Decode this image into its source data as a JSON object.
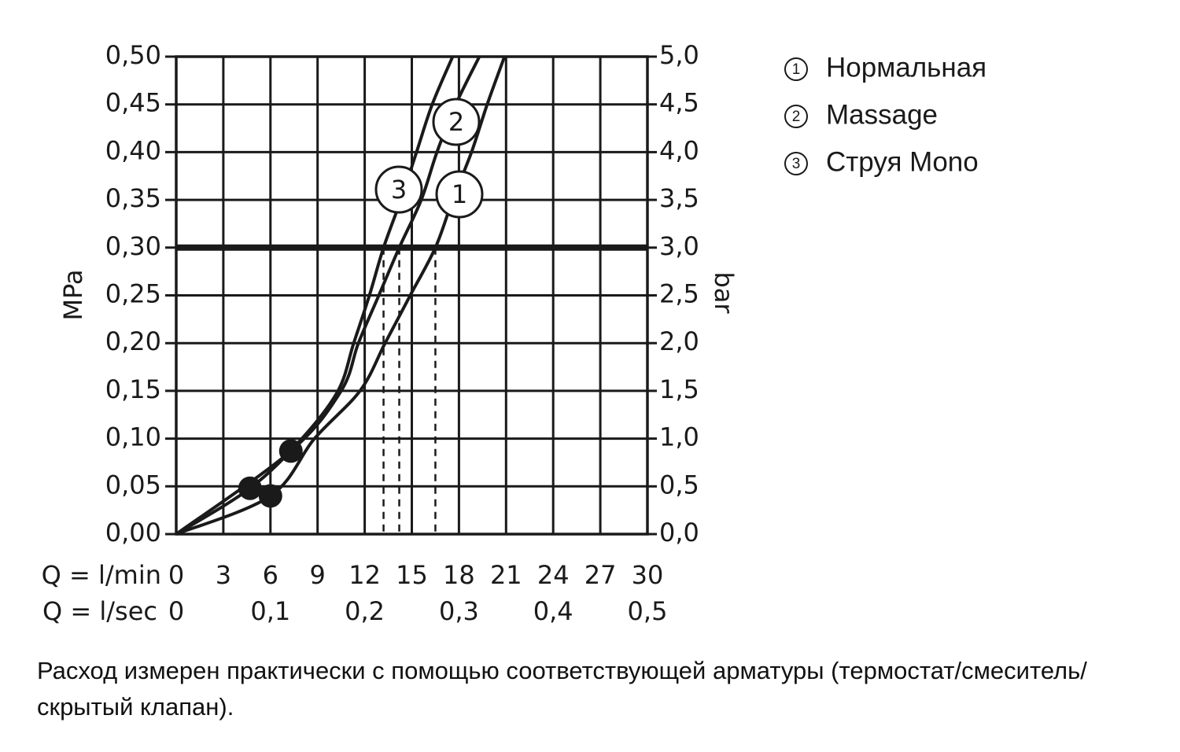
{
  "chart_data": {
    "type": "line",
    "y_label": "MPa",
    "y2_label": "bar",
    "x_label": "Q = l/min",
    "x2_label": "Q = l/sec",
    "xlim": [
      0,
      30
    ],
    "xticks": [
      0,
      3,
      6,
      9,
      12,
      15,
      18,
      21,
      24,
      27,
      30
    ],
    "x2lim": [
      0,
      0.5
    ],
    "x2ticks": [
      0,
      {
        "value": 0.1,
        "label": "0,1"
      },
      {
        "value": 0.2,
        "label": "0,2"
      },
      {
        "value": 0.3,
        "label": "0,3"
      },
      {
        "value": 0.4,
        "label": "0,4"
      },
      {
        "value": 0.5,
        "label": "0,5"
      }
    ],
    "ylim": [
      0,
      0.5
    ],
    "yticks": [
      {
        "value": 0,
        "label": "0,00"
      },
      {
        "value": 0.05,
        "label": "0,05"
      },
      {
        "value": 0.1,
        "label": "0,10"
      },
      {
        "value": 0.15,
        "label": "0,15"
      },
      {
        "value": 0.2,
        "label": "0,20"
      },
      {
        "value": 0.25,
        "label": "0,25"
      },
      {
        "value": 0.3,
        "label": "0,30"
      },
      {
        "value": 0.35,
        "label": "0,35"
      },
      {
        "value": 0.4,
        "label": "0,40"
      },
      {
        "value": 0.45,
        "label": "0,45"
      },
      {
        "value": 0.5,
        "label": "0,50"
      }
    ],
    "y2lim": [
      0,
      5
    ],
    "y2ticks": [
      {
        "value": 0,
        "label": "0,0"
      },
      {
        "value": 0.5,
        "label": "0,5"
      },
      {
        "value": 1,
        "label": "1,0"
      },
      {
        "value": 1.5,
        "label": "1,5"
      },
      {
        "value": 2,
        "label": "2,0"
      },
      {
        "value": 2.5,
        "label": "2,5"
      },
      {
        "value": 3,
        "label": "3,0"
      },
      {
        "value": 3.5,
        "label": "3,5"
      },
      {
        "value": 4,
        "label": "4,0"
      },
      {
        "value": 4.5,
        "label": "4,5"
      },
      {
        "value": 5,
        "label": "5,0"
      }
    ],
    "grid": true,
    "color": "#1a1a1a",
    "operating_pressure": 0.3,
    "series": [
      {
        "label": "1",
        "name": "Нормальная",
        "x": [
          0,
          6,
          8.8,
          11.7,
          13.3,
          14.9,
          16.5,
          17.6,
          18.8,
          19.8,
          20.9
        ],
        "values": [
          0,
          0.04,
          0.1,
          0.15,
          0.2,
          0.25,
          0.3,
          0.35,
          0.4,
          0.45,
          0.5
        ],
        "marker_x": 6,
        "marker_y": 0.04,
        "flow_at_operating": 16.5
      },
      {
        "label": "2",
        "name": "Massage",
        "x": [
          0,
          7.3,
          10.5,
          11.6,
          12.9,
          14.2,
          15.6,
          16.6,
          17.8,
          19.3
        ],
        "values": [
          0,
          0.087,
          0.15,
          0.2,
          0.25,
          0.3,
          0.35,
          0.4,
          0.45,
          0.5
        ],
        "marker_x": 7.3,
        "marker_y": 0.087,
        "flow_at_operating": 14.2
      },
      {
        "label": "3",
        "name": "Струя Mono",
        "x": [
          0,
          4.7,
          8,
          10.3,
          11.3,
          12.3,
          13.2,
          14.3,
          15.3,
          16.3,
          17.6
        ],
        "values": [
          0,
          0.048,
          0.1,
          0.15,
          0.2,
          0.25,
          0.3,
          0.35,
          0.4,
          0.45,
          0.5
        ],
        "marker_x": 4.7,
        "marker_y": 0.048,
        "flow_at_operating": 13.2
      }
    ],
    "note": "Расход измерен практически с помощью соответствующей арматуры (термостат/смеситель/скрытый клапан)."
  }
}
